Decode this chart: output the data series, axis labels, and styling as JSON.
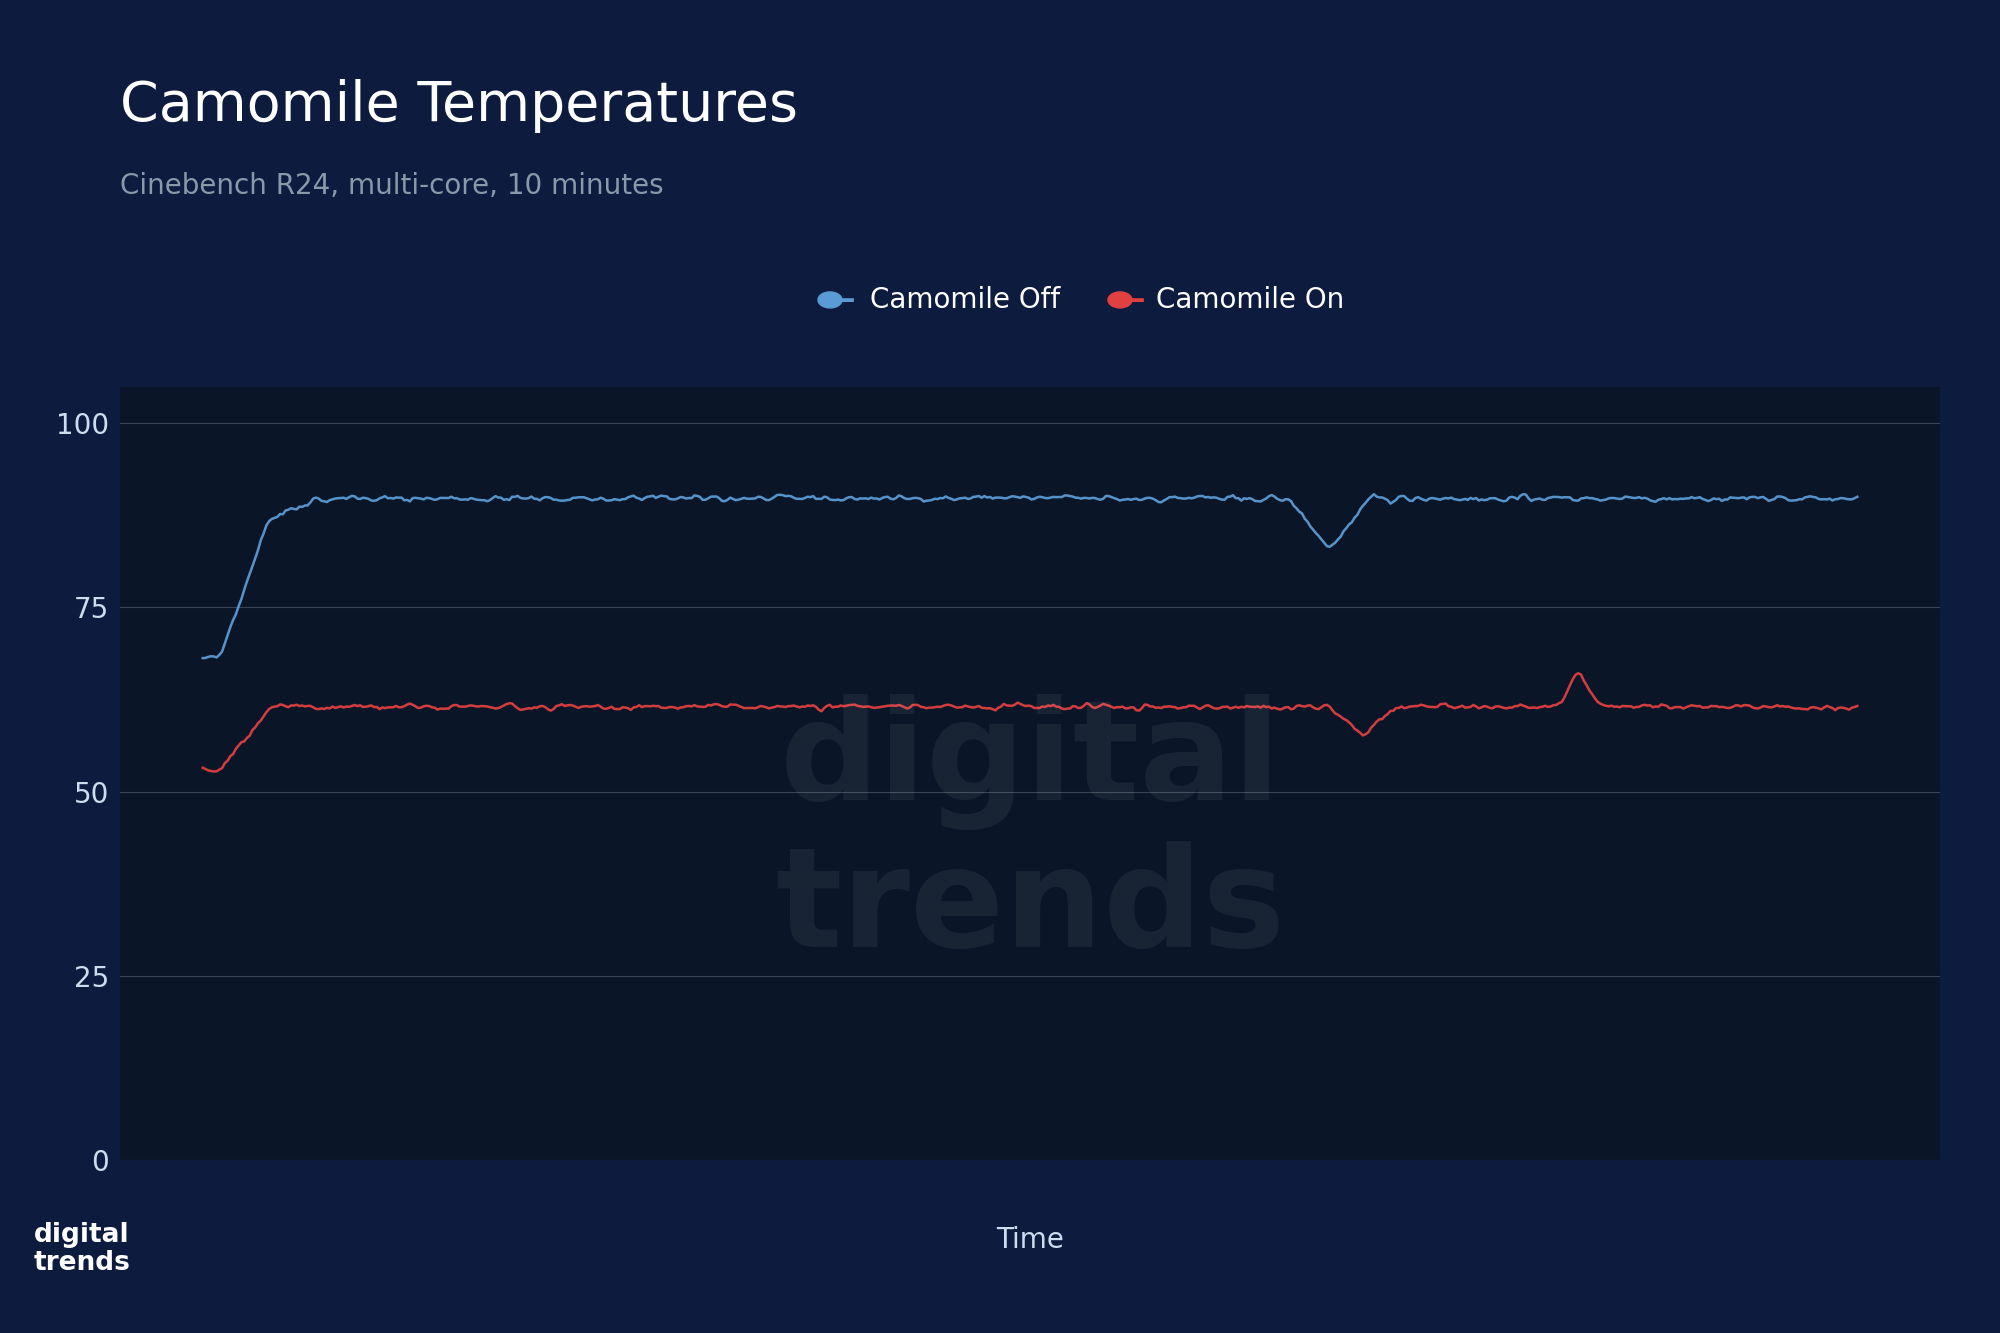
{
  "title": "Camomile Temperatures",
  "subtitle": "Cinebench R24, multi-core, 10 minutes",
  "xlabel": "Time",
  "background_color": "#0d1b3e",
  "plot_bg_color": "#0a1628",
  "title_color": "#ffffff",
  "subtitle_color": "#8899aa",
  "xlabel_color": "#ccddee",
  "tick_color": "#ccddee",
  "grid_color": "#ffffff",
  "legend_labels": [
    "Camomile Off",
    "Camomile On"
  ],
  "legend_colors": [
    "#5b9bd5",
    "#e04040"
  ],
  "line1_color": "#5b9bd5",
  "line2_color": "#e04040",
  "yticks": [
    0,
    25,
    50,
    75,
    100
  ],
  "ylim": [
    0,
    105
  ],
  "n_points": 600
}
